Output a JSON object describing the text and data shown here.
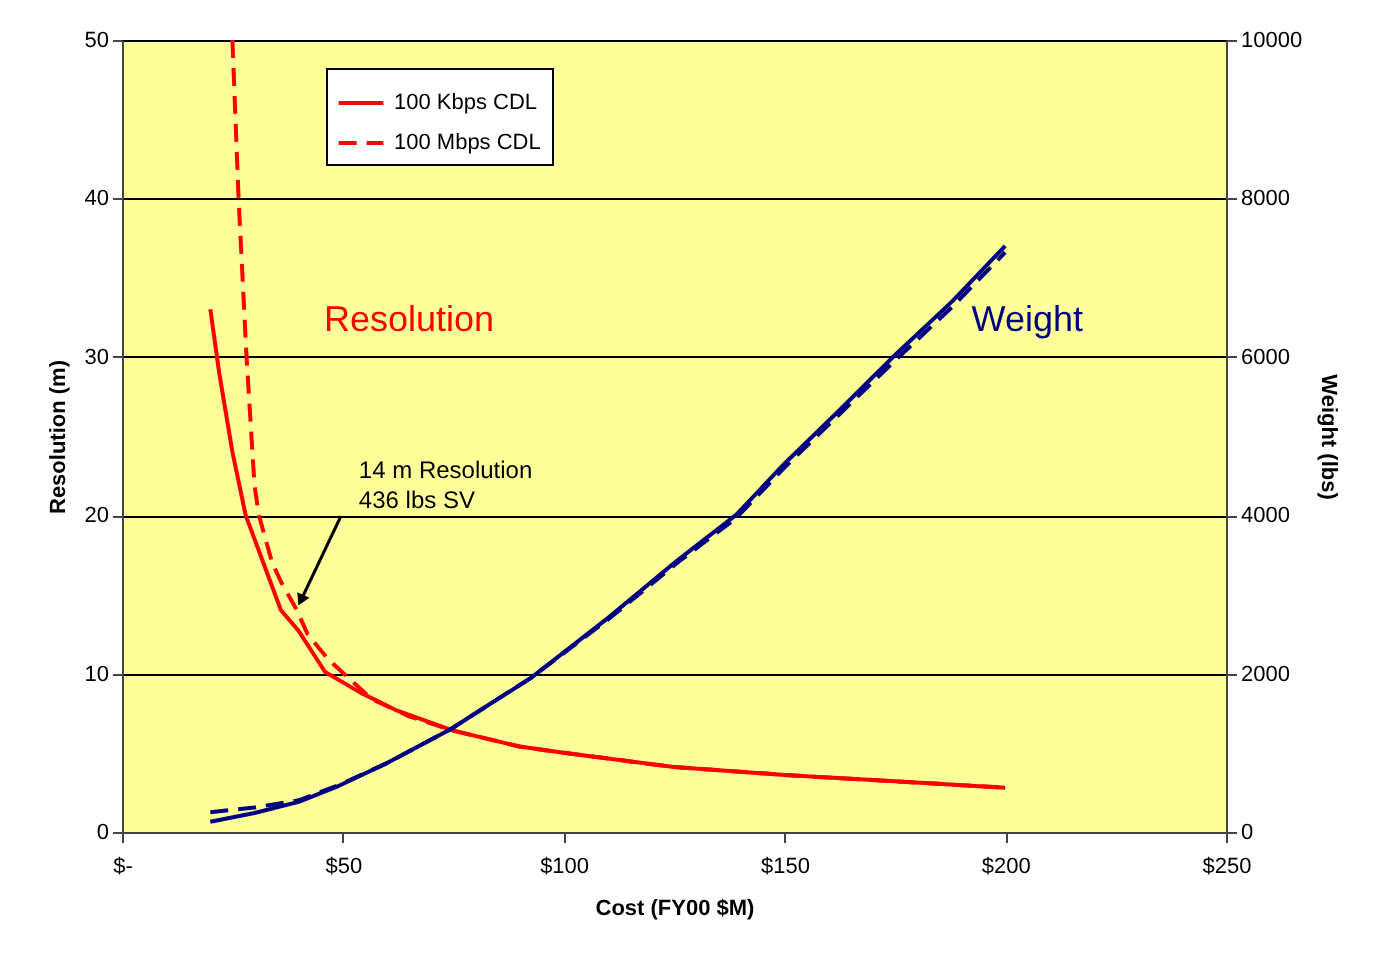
{
  "chart_data": {
    "type": "line",
    "xlabel": "Cost (FY00 $M)",
    "ylabel": "Resolution (m)",
    "y2label": "Weight (lbs)",
    "xlim": [
      0,
      250
    ],
    "xticks": [
      {
        "value": 0,
        "label": "$-"
      },
      {
        "value": 50,
        "label": "$50"
      },
      {
        "value": 100,
        "label": "$100"
      },
      {
        "value": 150,
        "label": "$150"
      },
      {
        "value": 200,
        "label": "$200"
      },
      {
        "value": 250,
        "label": "$250"
      }
    ],
    "ylim": [
      0,
      50
    ],
    "yticks": [
      0,
      10,
      20,
      30,
      40,
      50
    ],
    "y2lim": [
      0,
      10000
    ],
    "y2ticks": [
      0,
      {
        "value": 2000,
        "label": "2000"
      },
      {
        "value": 4000,
        "label": "4000"
      },
      {
        "value": 6000,
        "label": "6000"
      },
      {
        "value": 8000,
        "label": "8000"
      },
      {
        "value": 10000,
        "label": "10000"
      }
    ],
    "grid": "y",
    "legend": "top left",
    "marker": "none",
    "series": [
      {
        "name": "100 Kbps CDL",
        "color": "#ff0000",
        "line_style": "solid",
        "x": [
          20,
          22,
          25,
          28,
          32,
          36,
          40,
          46,
          54,
          62,
          75,
          90,
          100,
          125,
          150,
          175,
          200
        ],
        "values": [
          33,
          29,
          24,
          20,
          17,
          14,
          12.7,
          10.1,
          8.8,
          7.7,
          6.4,
          5.4,
          5.0,
          4.1,
          3.6,
          3.2,
          2.8
        ]
      },
      {
        "name": "100 Mbps CDL",
        "color": "#ff0000",
        "line_style": "dashed",
        "x": [
          25,
          26.4,
          28.2,
          30,
          31,
          34,
          36,
          39.6,
          42,
          46.7,
          56.5,
          65,
          75,
          90,
          100,
          125,
          150,
          175,
          200
        ],
        "values": [
          50,
          40,
          30,
          21.9,
          20,
          17,
          15.8,
          14,
          12.5,
          10.9,
          8.4,
          7.3,
          6.4,
          5.4,
          5.0,
          4.1,
          3.6,
          3.2,
          2.8
        ]
      },
      {
        "color": "#000080",
        "line_style": "solid",
        "axis": "y2",
        "x": [
          20,
          30,
          40,
          49,
          60,
          74.5,
          92.7,
          110,
          126,
          139,
          150,
          162,
          175,
          188,
          200
        ],
        "values": [
          130,
          240,
          380,
          580,
          870,
          1300,
          1950,
          2700,
          3440,
          4000,
          4650,
          5300,
          6020,
          6700,
          7400
        ]
      },
      {
        "color": "#000080",
        "line_style": "dashed",
        "axis": "y2",
        "x": [
          20,
          30,
          40,
          49,
          60,
          74.5,
          92.7,
          110,
          126,
          139,
          150,
          162,
          175,
          188,
          200
        ],
        "values": [
          250,
          310,
          400,
          590,
          870,
          1300,
          1950,
          2680,
          3410,
          3960,
          4600,
          5250,
          5950,
          6630,
          7320
        ]
      }
    ],
    "annotations": [
      "Resolution",
      "Weight",
      {
        "text": "14 m Resolution\n436 lbs SV",
        "x": 39.6,
        "y": 14
      }
    ]
  }
}
